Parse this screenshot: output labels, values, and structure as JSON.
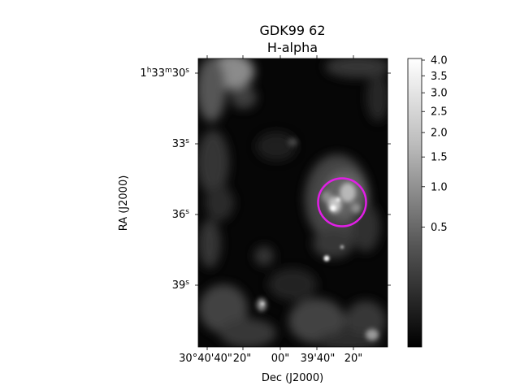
{
  "figure": {
    "title": "GDK99 62",
    "subtitle": "H-alpha",
    "xlabel": "Dec (J2000)",
    "ylabel": "RA (J2000)"
  },
  "x_ticks": [
    {
      "value": "30°40'40\"",
      "label": "30°40'40\""
    },
    {
      "value": "20\"",
      "label": "20\""
    },
    {
      "value": "00\"",
      "label": "00\""
    },
    {
      "value": "39'40\"",
      "label": "39'40\""
    },
    {
      "value": "20\"",
      "label": "20\""
    }
  ],
  "y_ticks": [
    {
      "value": "1h33m30s",
      "label_main": "1",
      "h": "h",
      "m_main": "33",
      "m": "m",
      "s_main": "30",
      "s": "s"
    },
    {
      "value": "33s",
      "label_main": "33",
      "s": "s"
    },
    {
      "value": "36s",
      "label_main": "36",
      "s": "s"
    },
    {
      "value": "39s",
      "label_main": "39",
      "s": "s"
    }
  ],
  "colorbar": {
    "scale": "nonlinear",
    "colormap": "gray",
    "ticks": [
      "4.0",
      "3.5",
      "3.0",
      "2.5",
      "2.0",
      "1.5",
      "1.0",
      "0.5"
    ],
    "tick_values": [
      4.0,
      3.5,
      3.0,
      2.5,
      2.0,
      1.5,
      1.0,
      0.5
    ]
  },
  "marker": {
    "shape": "circle",
    "color": "#e11fe6"
  }
}
